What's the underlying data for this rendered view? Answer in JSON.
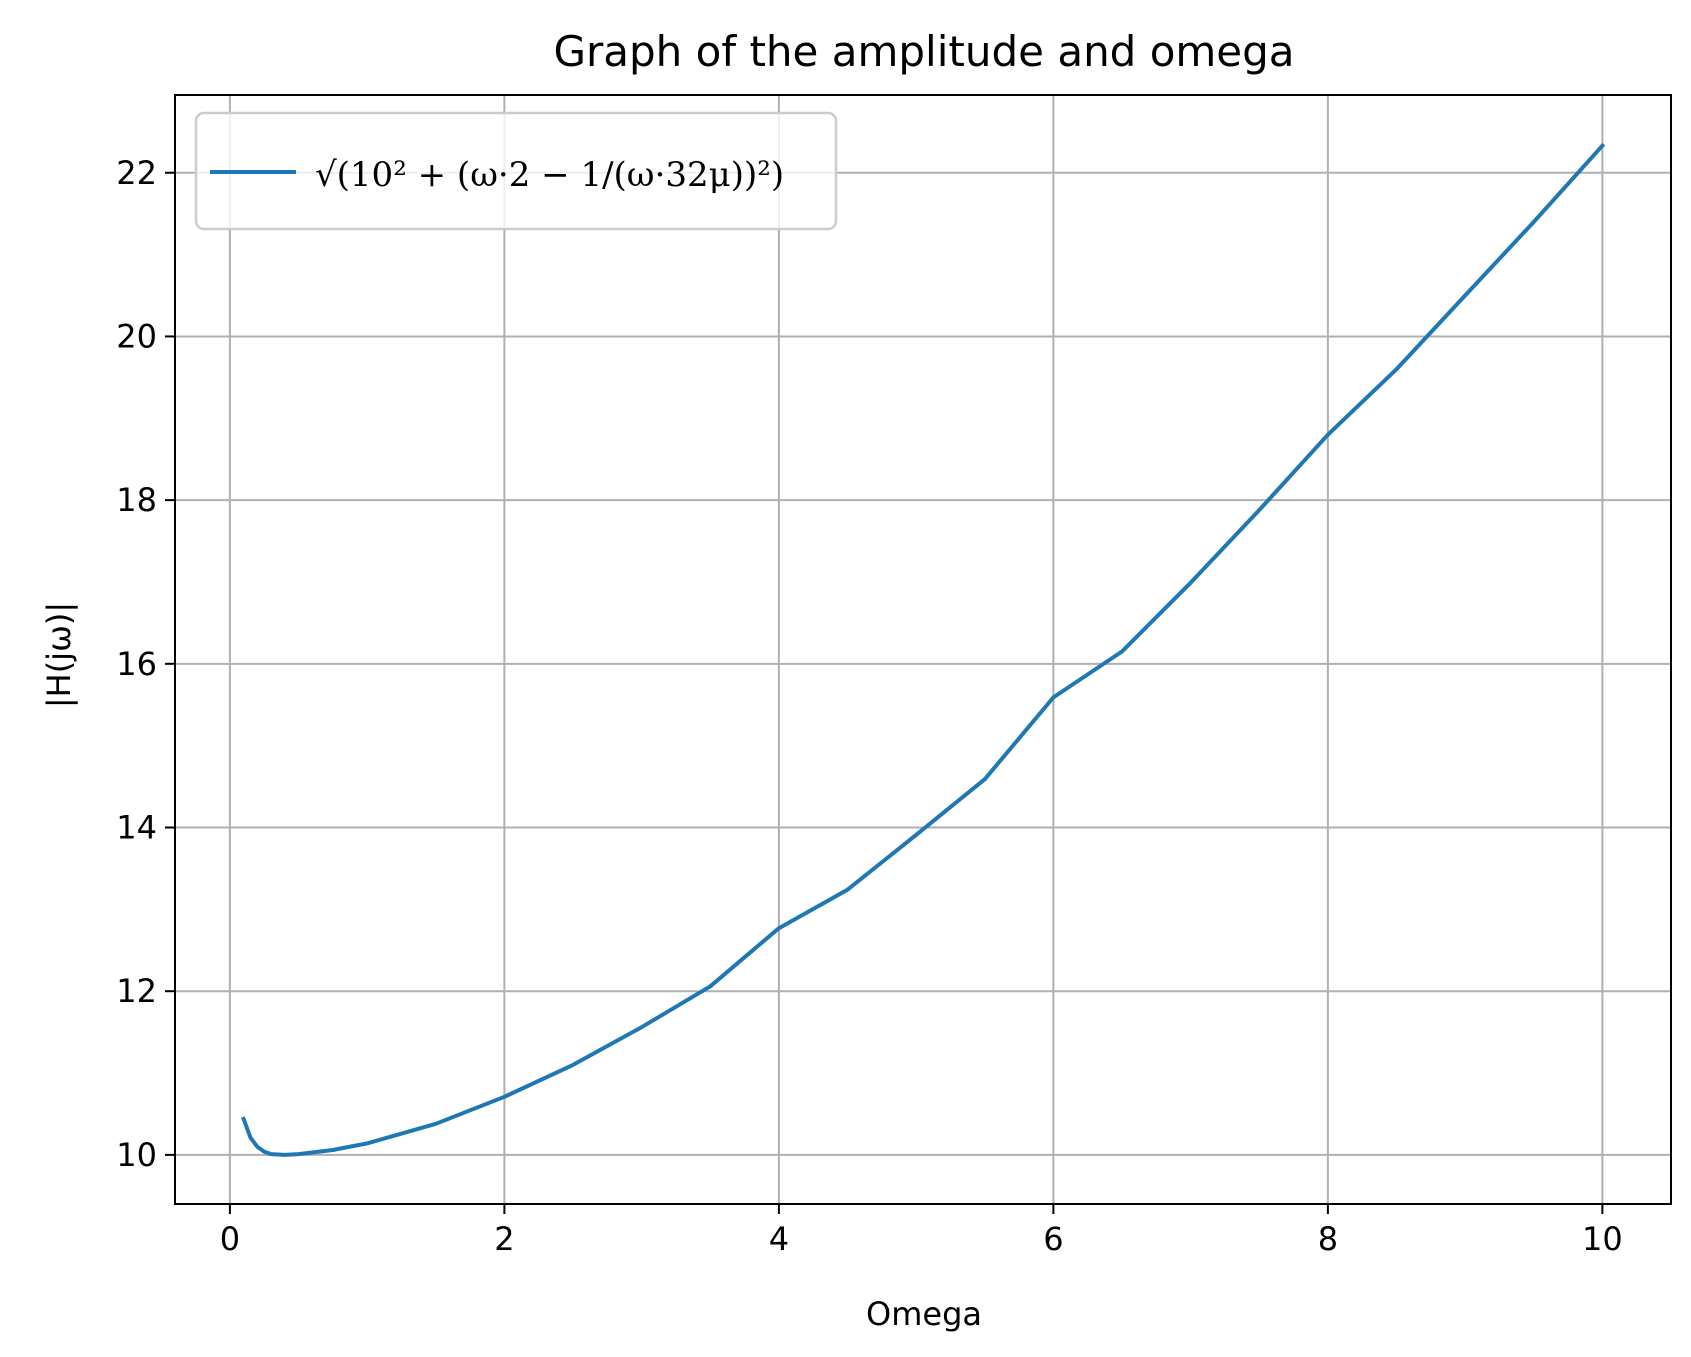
{
  "chart_data": {
    "type": "line",
    "title": "Graph of the amplitude and omega",
    "xlabel": "Omega",
    "ylabel": "|H(jω)|",
    "xlim": [
      -0.4,
      10.5
    ],
    "ylim": [
      9.4,
      22.95
    ],
    "x_ticks": [
      0,
      2,
      4,
      6,
      8,
      10
    ],
    "y_ticks": [
      10,
      12,
      14,
      16,
      18,
      20,
      22
    ],
    "grid": true,
    "legend_position": "top-left",
    "series": [
      {
        "name": "√(10² + (ω·2 − 1/(ω·32μ))²)",
        "color": "#1f77b4",
        "x": [
          0.1,
          0.15,
          0.2,
          0.25,
          0.3,
          0.4,
          0.5,
          0.75,
          1.0,
          1.5,
          2.0,
          2.5,
          3.0,
          3.5,
          4.0,
          4.5,
          5.0,
          5.5,
          6.0,
          6.5,
          7.0,
          7.5,
          8.0,
          8.5,
          9.0,
          9.5,
          10.0
        ],
        "y": [
          10.44,
          10.21,
          10.1,
          10.04,
          10.01,
          10.0,
          10.01,
          10.06,
          10.14,
          10.38,
          10.71,
          11.1,
          11.56,
          12.06,
          12.77,
          13.24,
          13.91,
          14.59,
          15.59,
          16.15,
          16.99,
          17.88,
          18.8,
          19.6,
          20.5,
          21.4,
          22.33
        ]
      }
    ]
  }
}
